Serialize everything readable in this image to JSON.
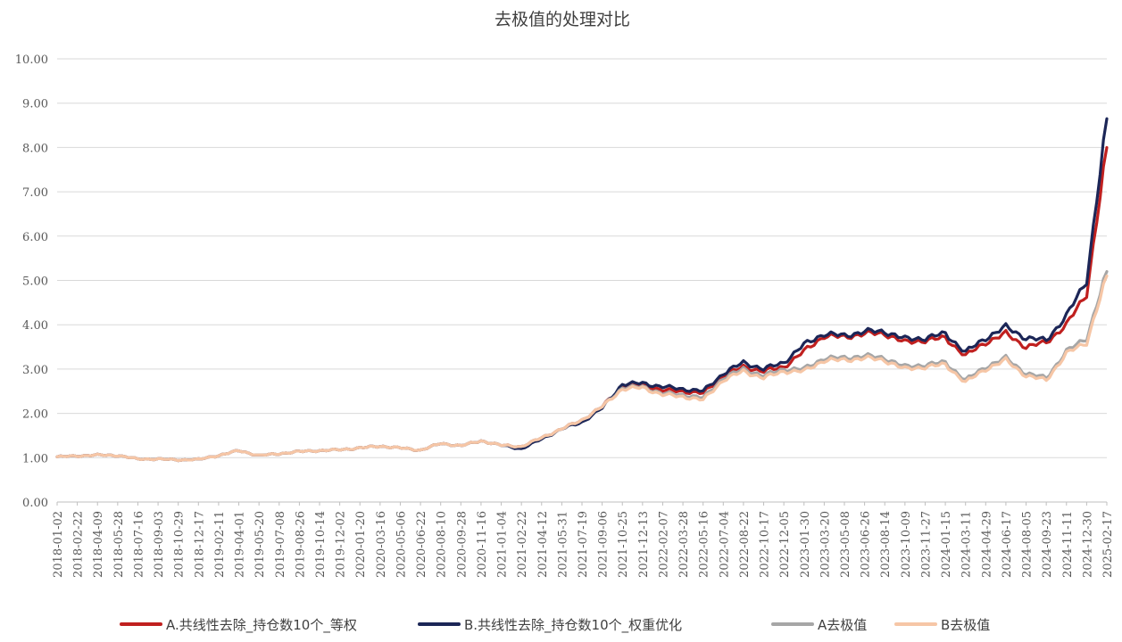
{
  "chart_data": {
    "type": "line",
    "title": "去极值的处理对比",
    "xlabel": "",
    "ylabel": "",
    "ylim": [
      0,
      10
    ],
    "yticks": [
      "0.00",
      "1.00",
      "2.00",
      "3.00",
      "4.00",
      "5.00",
      "6.00",
      "7.00",
      "8.00",
      "9.00",
      "10.00"
    ],
    "grid": true,
    "legend_position": "bottom",
    "x": [
      "2018-01-02",
      "2018-02-22",
      "2018-04-09",
      "2018-05-28",
      "2018-07-16",
      "2018-09-03",
      "2018-10-29",
      "2018-12-17",
      "2019-02-11",
      "2019-04-01",
      "2019-05-20",
      "2019-07-08",
      "2019-08-26",
      "2019-10-14",
      "2019-12-02",
      "2020-01-20",
      "2020-03-16",
      "2020-05-06",
      "2020-06-22",
      "2020-08-10",
      "2020-09-28",
      "2020-11-16",
      "2021-01-04",
      "2021-02-22",
      "2021-04-12",
      "2021-05-31",
      "2021-07-19",
      "2021-09-06",
      "2021-10-25",
      "2021-12-13",
      "2022-02-07",
      "2022-03-28",
      "2022-05-16",
      "2022-07-04",
      "2022-08-22",
      "2022-10-17",
      "2022-12-05",
      "2023-01-30",
      "2023-03-20",
      "2023-05-08",
      "2023-06-26",
      "2023-08-14",
      "2023-10-09",
      "2023-11-27",
      "2024-01-15",
      "2024-03-11",
      "2024-04-29",
      "2024-06-17",
      "2024-08-05",
      "2024-09-23",
      "2024-11-11",
      "2024-12-30",
      "2025-02-17"
    ],
    "series": [
      {
        "name": "A.共线性去除_持仓数10个_等权",
        "color": "#c0201f",
        "values": [
          1.02,
          1.04,
          1.06,
          1.05,
          0.97,
          0.97,
          0.95,
          0.96,
          1.05,
          1.16,
          1.05,
          1.09,
          1.14,
          1.16,
          1.18,
          1.22,
          1.26,
          1.22,
          1.17,
          1.32,
          1.27,
          1.38,
          1.28,
          1.25,
          1.45,
          1.65,
          1.85,
          2.15,
          2.62,
          2.65,
          2.52,
          2.5,
          2.45,
          2.85,
          3.05,
          2.95,
          3.05,
          3.4,
          3.75,
          3.72,
          3.8,
          3.8,
          3.6,
          3.65,
          3.7,
          3.3,
          3.6,
          3.8,
          3.5,
          3.6,
          4.0,
          4.7,
          8.0
        ]
      },
      {
        "name": "B.共线性去除_持仓数10个_权重优化",
        "color": "#1c2657",
        "values": [
          1.02,
          1.04,
          1.06,
          1.05,
          0.97,
          0.97,
          0.95,
          0.96,
          1.05,
          1.16,
          1.05,
          1.09,
          1.14,
          1.16,
          1.18,
          1.22,
          1.26,
          1.22,
          1.17,
          1.32,
          1.27,
          1.38,
          1.28,
          1.2,
          1.42,
          1.65,
          1.8,
          2.12,
          2.66,
          2.68,
          2.6,
          2.55,
          2.5,
          2.9,
          3.15,
          3.0,
          3.15,
          3.55,
          3.8,
          3.75,
          3.85,
          3.85,
          3.68,
          3.7,
          3.8,
          3.38,
          3.7,
          3.95,
          3.7,
          3.65,
          4.2,
          5.0,
          8.65
        ]
      },
      {
        "name": "A去极值",
        "color": "#a6a6a6",
        "values": [
          1.02,
          1.04,
          1.06,
          1.05,
          0.97,
          0.97,
          0.95,
          0.96,
          1.05,
          1.16,
          1.05,
          1.09,
          1.14,
          1.16,
          1.18,
          1.22,
          1.26,
          1.22,
          1.17,
          1.32,
          1.27,
          1.38,
          1.28,
          1.25,
          1.45,
          1.65,
          1.85,
          2.15,
          2.58,
          2.6,
          2.45,
          2.42,
          2.35,
          2.8,
          3.0,
          2.85,
          3.0,
          3.0,
          3.25,
          3.25,
          3.3,
          3.25,
          3.05,
          3.1,
          3.15,
          2.75,
          3.05,
          3.25,
          2.9,
          2.8,
          3.4,
          3.7,
          5.2
        ]
      },
      {
        "name": "B去极值",
        "color": "#f6c6a6",
        "values": [
          1.02,
          1.04,
          1.06,
          1.05,
          0.97,
          0.97,
          0.95,
          0.96,
          1.05,
          1.16,
          1.05,
          1.09,
          1.14,
          1.16,
          1.18,
          1.22,
          1.26,
          1.22,
          1.17,
          1.32,
          1.27,
          1.38,
          1.28,
          1.25,
          1.45,
          1.65,
          1.85,
          2.15,
          2.55,
          2.58,
          2.42,
          2.38,
          2.3,
          2.75,
          2.95,
          2.8,
          2.95,
          2.95,
          3.2,
          3.2,
          3.25,
          3.2,
          3.0,
          3.05,
          3.1,
          2.7,
          3.0,
          3.2,
          2.85,
          2.75,
          3.35,
          3.6,
          5.1
        ]
      }
    ]
  }
}
